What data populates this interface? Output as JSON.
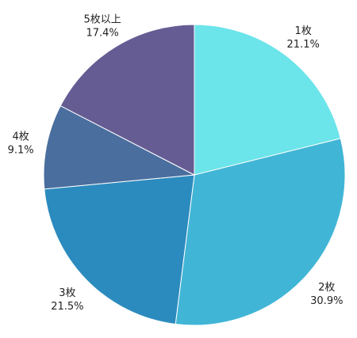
{
  "chart_data": {
    "type": "pie",
    "categories": [
      "1枚",
      "2枚",
      "3枚",
      "4枚",
      "5枚以上"
    ],
    "values": [
      21.1,
      30.9,
      21.5,
      9.1,
      17.4
    ],
    "value_labels": [
      "21.1%",
      "30.9%",
      "21.5%",
      "9.1%",
      "17.4%"
    ],
    "colors": [
      "#6BE4EA",
      "#41B5D6",
      "#2C8BBE",
      "#4A6E9E",
      "#665C94"
    ],
    "start": "12 o'clock",
    "direction": "clockwise",
    "legend": "none"
  }
}
